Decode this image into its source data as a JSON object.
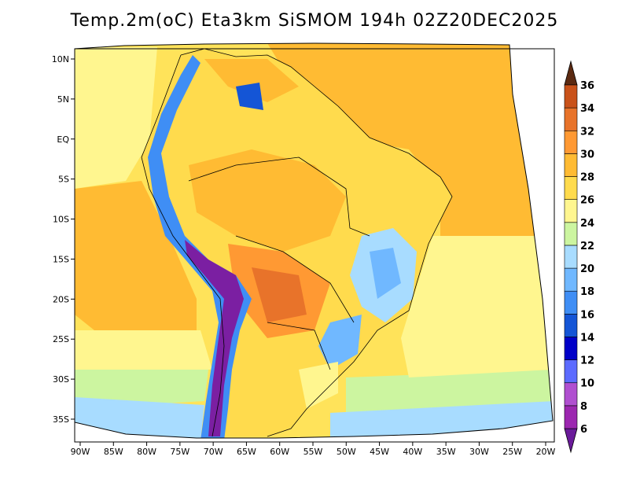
{
  "title": "Temp.2m(oC) Eta3km SiSMOM 194h 02Z20DEC2025",
  "map": {
    "lat_labels": [
      "10N",
      "5N",
      "EQ",
      "5S",
      "10S",
      "15S",
      "20S",
      "25S",
      "30S",
      "35S"
    ],
    "lat_values": [
      10,
      5,
      0,
      -5,
      -10,
      -15,
      -20,
      -25,
      -30,
      -35
    ],
    "lon_labels": [
      "90W",
      "85W",
      "80W",
      "75W",
      "70W",
      "65W",
      "60W",
      "55W",
      "50W",
      "45W",
      "40W",
      "35W",
      "30W",
      "25W",
      "20W"
    ],
    "lon_values": [
      -90,
      -85,
      -80,
      -75,
      -70,
      -65,
      -60,
      -55,
      -50,
      -45,
      -40,
      -35,
      -30,
      -25,
      -20
    ]
  },
  "colorbar": {
    "labels": [
      "6",
      "8",
      "10",
      "12",
      "14",
      "16",
      "18",
      "20",
      "22",
      "24",
      "26",
      "28",
      "30",
      "32",
      "34",
      "36"
    ],
    "colors": [
      "#7b1fa2",
      "#9c27b0",
      "#b04fd0",
      "#5c6bff",
      "#0000c8",
      "#1455d6",
      "#3f8ef5",
      "#70b8ff",
      "#a8dcff",
      "#ccf5a0",
      "#fff68f",
      "#ffdb4d",
      "#ffbb33",
      "#ff9933",
      "#e8732a",
      "#c9521a",
      "#a0400f",
      "#7a2e0d"
    ],
    "under_color": "#6a1b9a",
    "over_color": "#5c2a12"
  }
}
